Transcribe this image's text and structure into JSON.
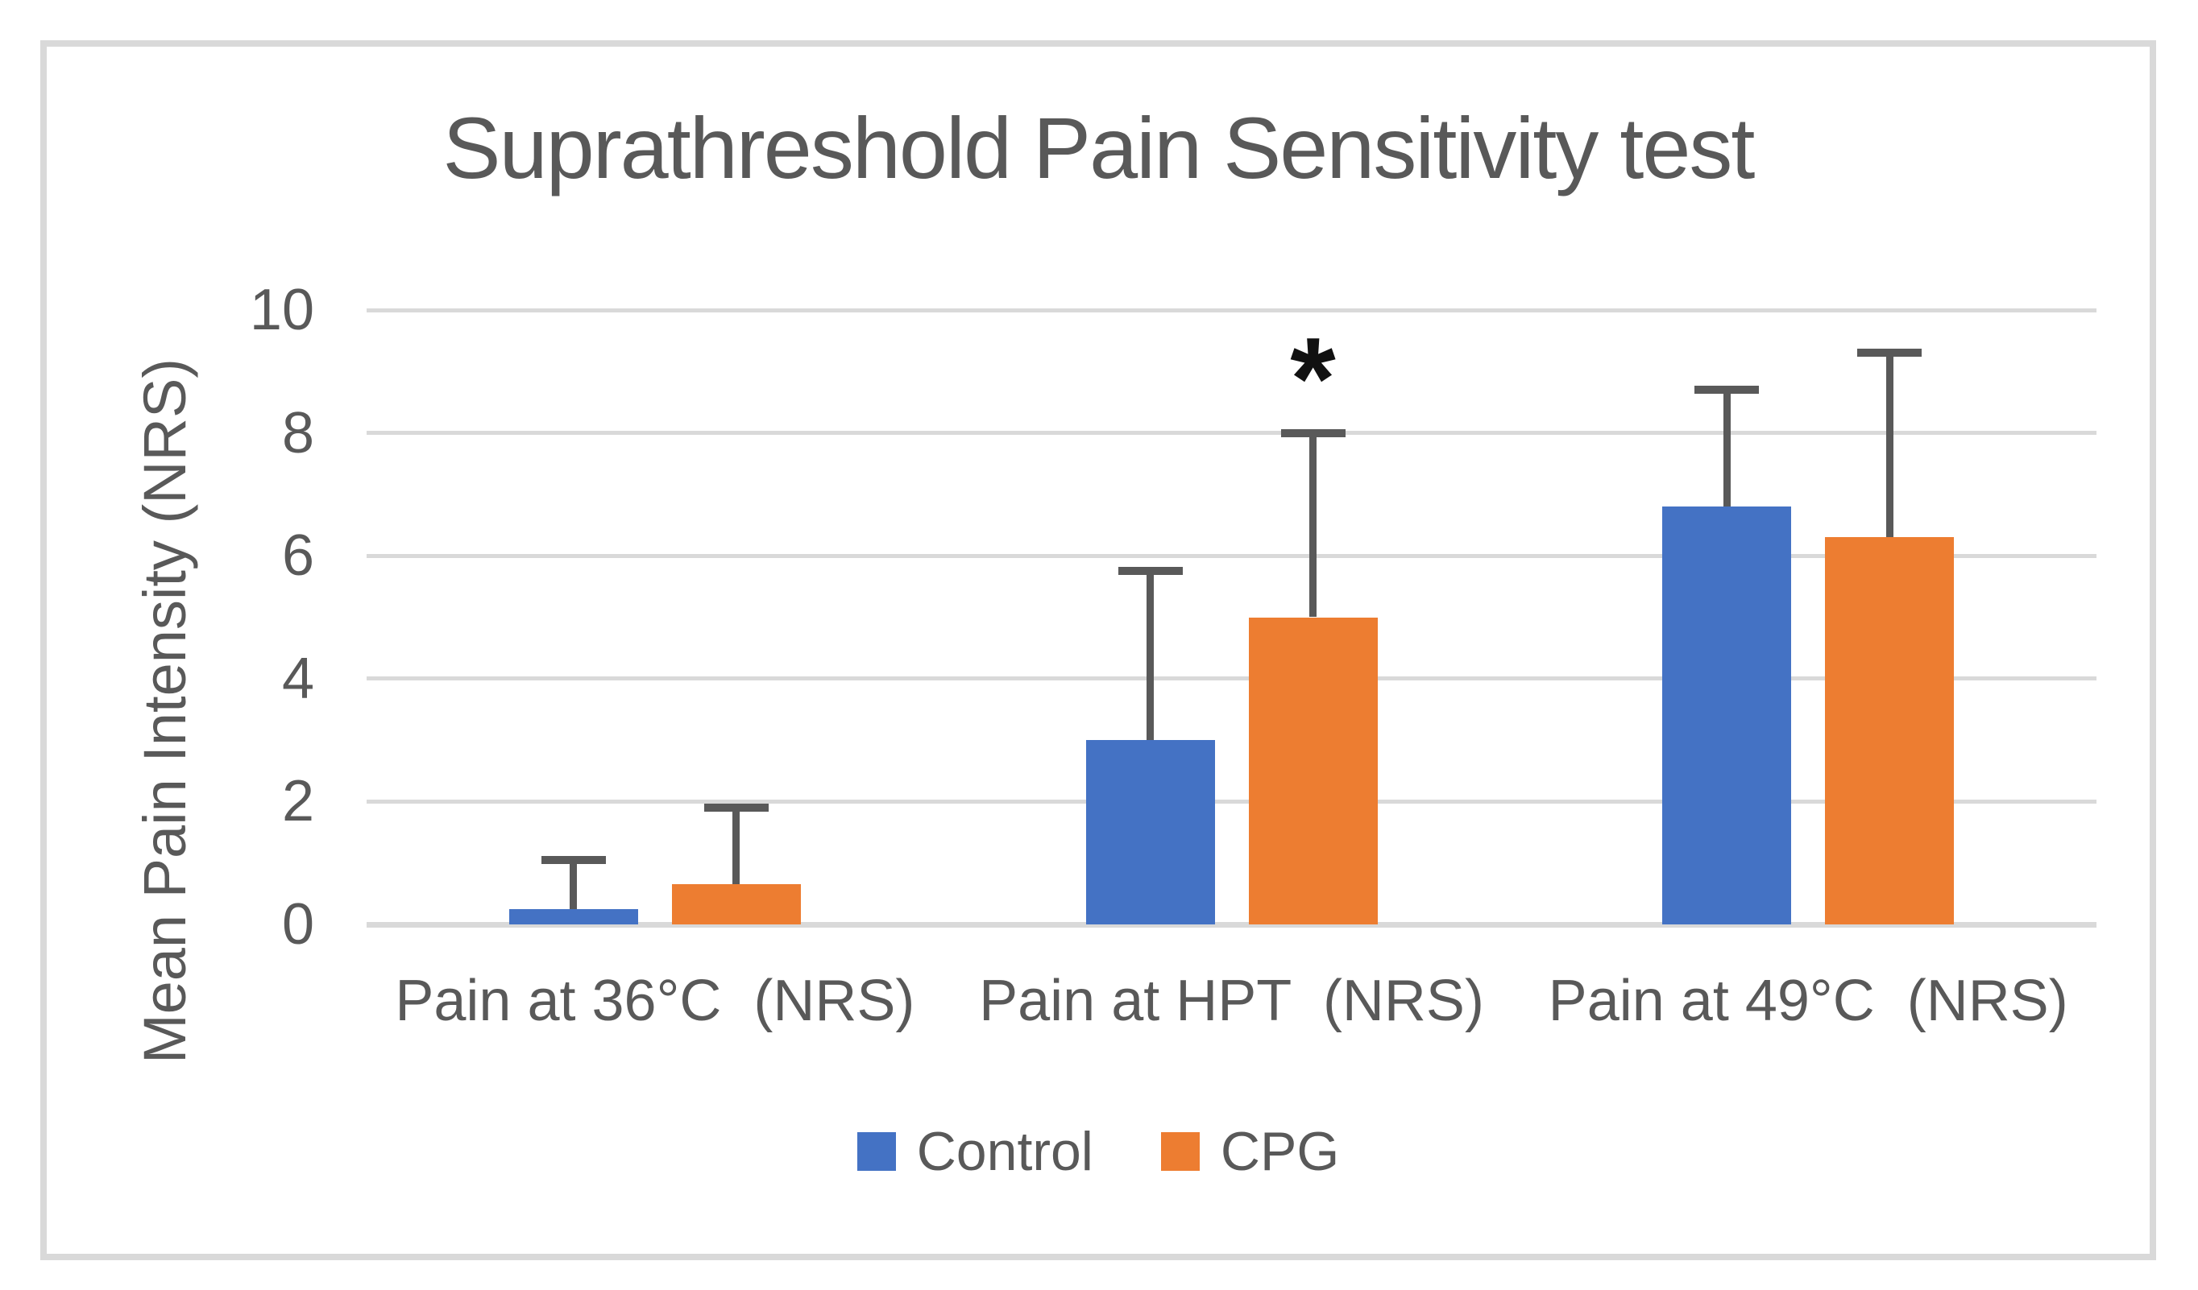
{
  "chart_data": {
    "type": "bar",
    "title": "Suprathreshold Pain Sensitivity test",
    "ylabel": "Mean Pain Intensity (NRS)",
    "xlabel": "",
    "ylim": [
      0,
      10
    ],
    "yticks": [
      0,
      2,
      4,
      6,
      8,
      10
    ],
    "grid": "horizontal",
    "legend_position": "bottom",
    "categories": [
      "Pain at 36°C  (NRS)",
      "Pain at HPT  (NRS)",
      "Pain at 49°C  (NRS)"
    ],
    "series": [
      {
        "name": "Control",
        "color": "#4472C4",
        "values": [
          0.25,
          3.0,
          6.8
        ],
        "error_plus": [
          0.8,
          2.75,
          1.9
        ],
        "error_bar_top": [
          1.05,
          5.75,
          8.7
        ]
      },
      {
        "name": "CPG",
        "color": "#ED7D31",
        "values": [
          0.65,
          5.0,
          6.3
        ],
        "error_plus": [
          1.25,
          3.0,
          3.0
        ],
        "error_bar_top": [
          1.9,
          8.0,
          9.3
        ]
      }
    ],
    "annotations": [
      {
        "text": "*",
        "category_index": 1,
        "series_index": 1
      }
    ],
    "colors": {
      "control_bar": "#4472C4",
      "cpg_bar": "#ED7D31",
      "error_bar": "#595959",
      "gridline": "#D9D9D9",
      "axis_text": "#595959",
      "title_text": "#595959",
      "frame_border": "#D9D9D9",
      "annotation_text": "#111111",
      "background": "#FFFFFF"
    }
  }
}
